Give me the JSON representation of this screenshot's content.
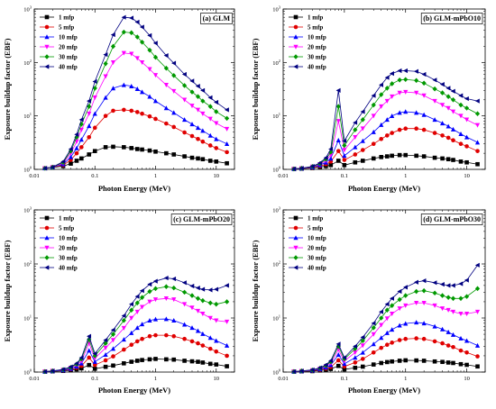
{
  "chart_data": [
    {
      "type": "line",
      "panel_label": "(a) GLM",
      "xlabel": "Photon Energy (MeV)",
      "ylabel": "Exposure buildup factor (EBF)",
      "x_scale": "log",
      "y_scale": "log",
      "xlim": [
        0.01,
        20
      ],
      "ylim": [
        1,
        1000
      ],
      "x_ticks": [
        "0.01",
        "0.1",
        "1",
        "10"
      ],
      "y_ticks": [
        {
          "base": "10",
          "exp": "0"
        },
        {
          "base": "10",
          "exp": "1"
        },
        {
          "base": "10",
          "exp": "2"
        },
        {
          "base": "10",
          "exp": "3"
        }
      ],
      "legend_position": "top-left",
      "x": [
        0.015,
        0.02,
        0.03,
        0.04,
        0.05,
        0.06,
        0.08,
        0.1,
        0.15,
        0.2,
        0.3,
        0.4,
        0.5,
        0.6,
        0.8,
        1,
        1.5,
        2,
        3,
        4,
        5,
        6,
        8,
        10,
        15
      ],
      "series": [
        {
          "name": "1 mfp",
          "marker": "square",
          "color": "#000000",
          "values": [
            1.05,
            1.08,
            1.15,
            1.28,
            1.45,
            1.6,
            1.9,
            2.2,
            2.6,
            2.65,
            2.6,
            2.5,
            2.4,
            2.35,
            2.25,
            2.15,
            2.0,
            1.9,
            1.75,
            1.65,
            1.6,
            1.55,
            1.45,
            1.4,
            1.3
          ]
        },
        {
          "name": "5 mfp",
          "marker": "circle",
          "color": "#e00000",
          "values": [
            1.05,
            1.1,
            1.2,
            1.5,
            2.0,
            2.6,
            4.0,
            6.0,
            10,
            12.5,
            13,
            12.5,
            11.8,
            11,
            9.8,
            8.8,
            7.2,
            6.2,
            4.9,
            4.2,
            3.7,
            3.3,
            2.8,
            2.5,
            2.1
          ]
        },
        {
          "name": "10 mfp",
          "marker": "triangle-up",
          "color": "#0000ff",
          "values": [
            1.05,
            1.1,
            1.25,
            1.7,
            2.5,
            3.6,
            6.5,
            11,
            22,
            33,
            38,
            36,
            32,
            28,
            23,
            19,
            14,
            11.5,
            8.5,
            7,
            6,
            5.3,
            4.3,
            3.7,
            3.0
          ]
        },
        {
          "name": "20 mfp",
          "marker": "triangle-down",
          "color": "#ff00ff",
          "values": [
            1.05,
            1.1,
            1.3,
            2.0,
            3.3,
            5.5,
            11,
            22,
            55,
            100,
            150,
            145,
            120,
            100,
            75,
            58,
            38,
            29,
            20,
            15.5,
            13,
            11,
            8.8,
            7.3,
            5.7
          ]
        },
        {
          "name": "30 mfp",
          "marker": "diamond",
          "color": "#009900",
          "values": [
            1.05,
            1.1,
            1.35,
            2.2,
            4.0,
            7.0,
            15,
            33,
            95,
            200,
            370,
            360,
            300,
            240,
            170,
            125,
            78,
            57,
            37,
            28,
            23,
            19,
            15,
            12,
            9
          ]
        },
        {
          "name": "40 mfp",
          "marker": "triangle-left",
          "color": "#000080",
          "values": [
            1.05,
            1.1,
            1.4,
            2.4,
            4.5,
            8.5,
            19,
            44,
            140,
            330,
            700,
            680,
            570,
            460,
            320,
            230,
            135,
            97,
            60,
            45,
            36,
            30,
            22,
            18,
            13
          ]
        }
      ]
    },
    {
      "type": "line",
      "panel_label": "(b) GLM-mPbO10",
      "xlabel": "Photon Energy (MeV)",
      "ylabel": "Exposure buildup factor (EBF)",
      "x_scale": "log",
      "y_scale": "log",
      "xlim": [
        0.01,
        20
      ],
      "ylim": [
        1,
        1000
      ],
      "x_ticks": [
        "0.01",
        "0.1",
        "1",
        "10"
      ],
      "y_ticks": [
        {
          "base": "10",
          "exp": "0"
        },
        {
          "base": "10",
          "exp": "1"
        },
        {
          "base": "10",
          "exp": "2"
        },
        {
          "base": "10",
          "exp": "3"
        }
      ],
      "legend_position": "top-left",
      "x": [
        0.015,
        0.02,
        0.03,
        0.04,
        0.05,
        0.06,
        0.08,
        0.1,
        0.15,
        0.2,
        0.3,
        0.4,
        0.5,
        0.6,
        0.8,
        1,
        1.5,
        2,
        3,
        4,
        5,
        6,
        8,
        10,
        15
      ],
      "series": [
        {
          "name": "1 mfp",
          "marker": "square",
          "color": "#000000",
          "values": [
            1.02,
            1.03,
            1.06,
            1.1,
            1.15,
            1.2,
            1.45,
            1.2,
            1.35,
            1.45,
            1.6,
            1.7,
            1.75,
            1.8,
            1.85,
            1.85,
            1.8,
            1.75,
            1.65,
            1.6,
            1.55,
            1.5,
            1.4,
            1.35,
            1.25
          ]
        },
        {
          "name": "5 mfp",
          "marker": "circle",
          "color": "#e00000",
          "values": [
            1.02,
            1.04,
            1.08,
            1.15,
            1.25,
            1.4,
            2.2,
            1.5,
            1.9,
            2.3,
            3.0,
            3.7,
            4.3,
            4.8,
            5.5,
            5.8,
            5.8,
            5.5,
            4.8,
            4.3,
            3.9,
            3.5,
            3.0,
            2.7,
            2.2
          ]
        },
        {
          "name": "10 mfp",
          "marker": "triangle-up",
          "color": "#0000ff",
          "values": [
            1.02,
            1.04,
            1.1,
            1.2,
            1.35,
            1.6,
            3.5,
            1.8,
            2.6,
            3.4,
            5.0,
            6.8,
            8.5,
            10,
            11.5,
            12,
            11.5,
            10.5,
            8.5,
            7.3,
            6.4,
            5.6,
            4.6,
            4.0,
            3.2
          ]
        },
        {
          "name": "20 mfp",
          "marker": "triangle-down",
          "color": "#ff00ff",
          "values": [
            1.02,
            1.05,
            1.12,
            1.25,
            1.45,
            1.85,
            8,
            2.3,
            4,
            5.8,
            10,
            15,
            19,
            23,
            27,
            28,
            27,
            24,
            19,
            16,
            14,
            12,
            10,
            8.5,
            6.7
          ]
        },
        {
          "name": "30 mfp",
          "marker": "diamond",
          "color": "#009900",
          "values": [
            1.02,
            1.05,
            1.13,
            1.28,
            1.55,
            2.1,
            15,
            2.8,
            5.5,
            8.5,
            16,
            25,
            33,
            40,
            47,
            48,
            46,
            41,
            32,
            27,
            23,
            20,
            16,
            14,
            11
          ]
        },
        {
          "name": "40 mfp",
          "marker": "triangle-left",
          "color": "#000080",
          "values": [
            1.02,
            1.05,
            1.14,
            1.32,
            1.65,
            2.4,
            30,
            3.4,
            7.5,
            12,
            24,
            38,
            52,
            62,
            70,
            70,
            68,
            60,
            47,
            39,
            33,
            29,
            24,
            21,
            19
          ]
        }
      ]
    },
    {
      "type": "line",
      "panel_label": "(c) GLM-mPbO20",
      "xlabel": "Photon Energy (MeV)",
      "ylabel": "Exposure buildup factor (EBF)",
      "x_scale": "log",
      "y_scale": "log",
      "xlim": [
        0.01,
        20
      ],
      "ylim": [
        1,
        1000
      ],
      "x_ticks": [
        "0.01",
        "0.1",
        "1",
        "10"
      ],
      "y_ticks": [
        {
          "base": "10",
          "exp": "0"
        },
        {
          "base": "10",
          "exp": "1"
        },
        {
          "base": "10",
          "exp": "2"
        },
        {
          "base": "10",
          "exp": "3"
        }
      ],
      "legend_position": "top-left",
      "x": [
        0.015,
        0.02,
        0.03,
        0.04,
        0.05,
        0.06,
        0.08,
        0.1,
        0.15,
        0.2,
        0.3,
        0.4,
        0.5,
        0.6,
        0.8,
        1,
        1.5,
        2,
        3,
        4,
        5,
        6,
        8,
        10,
        15
      ],
      "series": [
        {
          "name": "1 mfp",
          "marker": "square",
          "color": "#000000",
          "values": [
            1.02,
            1.03,
            1.05,
            1.08,
            1.12,
            1.17,
            1.35,
            1.15,
            1.25,
            1.32,
            1.45,
            1.55,
            1.62,
            1.67,
            1.72,
            1.75,
            1.72,
            1.7,
            1.62,
            1.58,
            1.55,
            1.5,
            1.42,
            1.38,
            1.28
          ]
        },
        {
          "name": "5 mfp",
          "marker": "circle",
          "color": "#e00000",
          "values": [
            1.02,
            1.04,
            1.07,
            1.12,
            1.2,
            1.3,
            1.85,
            1.35,
            1.65,
            1.95,
            2.6,
            3.2,
            3.7,
            4.1,
            4.6,
            4.8,
            4.8,
            4.6,
            4.1,
            3.7,
            3.4,
            3.1,
            2.7,
            2.4,
            2.0
          ]
        },
        {
          "name": "10 mfp",
          "marker": "triangle-up",
          "color": "#0000ff",
          "values": [
            1.02,
            1.04,
            1.08,
            1.15,
            1.27,
            1.45,
            2.5,
            1.55,
            2.1,
            2.7,
            4.0,
            5.3,
            6.6,
            7.7,
            9.0,
            9.5,
            9.6,
            9.0,
            7.6,
            6.6,
            5.8,
            5.1,
            4.3,
            3.8,
            3.1
          ]
        },
        {
          "name": "20 mfp",
          "marker": "triangle-down",
          "color": "#ff00ff",
          "values": [
            1.02,
            1.05,
            1.1,
            1.2,
            1.35,
            1.6,
            3.4,
            1.8,
            2.8,
            3.9,
            6.5,
            10,
            13,
            16,
            20,
            22,
            23,
            22,
            18,
            15.5,
            13.5,
            12,
            10,
            9,
            8.5
          ]
        },
        {
          "name": "30 mfp",
          "marker": "diamond",
          "color": "#009900",
          "values": [
            1.02,
            1.05,
            1.11,
            1.22,
            1.4,
            1.75,
            4.0,
            2.0,
            3.4,
            5.0,
            9.0,
            14,
            19,
            24,
            31,
            35,
            38,
            36,
            30,
            26,
            23,
            21,
            19,
            18,
            20
          ]
        },
        {
          "name": "40 mfp",
          "marker": "triangle-left",
          "color": "#000080",
          "values": [
            1.02,
            1.05,
            1.12,
            1.25,
            1.45,
            1.85,
            4.6,
            2.2,
            3.9,
            6.0,
            11,
            18,
            25,
            32,
            42,
            48,
            55,
            53,
            45,
            39,
            36,
            34,
            33,
            34,
            40
          ]
        }
      ]
    },
    {
      "type": "line",
      "panel_label": "(d) GLM-mPbO30",
      "xlabel": "Photon Energy (MeV)",
      "ylabel": "Exposure buildup factor (EBF)",
      "x_scale": "log",
      "y_scale": "log",
      "xlim": [
        0.01,
        20
      ],
      "ylim": [
        1,
        1000
      ],
      "x_ticks": [
        "0.01",
        "0.1",
        "1",
        "10"
      ],
      "y_ticks": [
        {
          "base": "10",
          "exp": "0"
        },
        {
          "base": "10",
          "exp": "1"
        },
        {
          "base": "10",
          "exp": "2"
        },
        {
          "base": "10",
          "exp": "3"
        }
      ],
      "legend_position": "top-left",
      "x": [
        0.015,
        0.02,
        0.03,
        0.04,
        0.05,
        0.06,
        0.08,
        0.1,
        0.15,
        0.2,
        0.3,
        0.4,
        0.5,
        0.6,
        0.8,
        1,
        1.5,
        2,
        3,
        4,
        5,
        6,
        8,
        10,
        15
      ],
      "series": [
        {
          "name": "1 mfp",
          "marker": "square",
          "color": "#000000",
          "values": [
            1.02,
            1.03,
            1.04,
            1.07,
            1.1,
            1.14,
            1.3,
            1.12,
            1.2,
            1.26,
            1.38,
            1.47,
            1.53,
            1.57,
            1.62,
            1.65,
            1.64,
            1.62,
            1.57,
            1.54,
            1.5,
            1.47,
            1.4,
            1.36,
            1.27
          ]
        },
        {
          "name": "5 mfp",
          "marker": "circle",
          "color": "#e00000",
          "values": [
            1.02,
            1.04,
            1.06,
            1.1,
            1.16,
            1.24,
            1.65,
            1.27,
            1.5,
            1.75,
            2.3,
            2.8,
            3.2,
            3.5,
            3.9,
            4.1,
            4.2,
            4.1,
            3.7,
            3.4,
            3.1,
            2.9,
            2.5,
            2.3,
            1.95
          ]
        },
        {
          "name": "10 mfp",
          "marker": "triangle-up",
          "color": "#0000ff",
          "values": [
            1.02,
            1.04,
            1.07,
            1.13,
            1.22,
            1.35,
            2.1,
            1.42,
            1.85,
            2.3,
            3.3,
            4.3,
            5.3,
            6.1,
            7.3,
            7.9,
            8.3,
            8.0,
            7.0,
            6.2,
            5.5,
            4.9,
            4.2,
            3.8,
            3.1
          ]
        },
        {
          "name": "20 mfp",
          "marker": "triangle-down",
          "color": "#ff00ff",
          "values": [
            1.02,
            1.04,
            1.08,
            1.16,
            1.28,
            1.45,
            2.6,
            1.6,
            2.3,
            3.1,
            5.0,
            7.4,
            9.8,
            12,
            15,
            17,
            19,
            19,
            17,
            15,
            14,
            13,
            12,
            12,
            13
          ]
        },
        {
          "name": "30 mfp",
          "marker": "diamond",
          "color": "#009900",
          "values": [
            1.02,
            1.05,
            1.09,
            1.18,
            1.32,
            1.55,
            3.0,
            1.75,
            2.7,
            3.8,
            6.6,
            10,
            14,
            17,
            22,
            26,
            31,
            32,
            29,
            26,
            24,
            23,
            23,
            25,
            35
          ]
        },
        {
          "name": "40 mfp",
          "marker": "triangle-left",
          "color": "#000080",
          "values": [
            1.02,
            1.05,
            1.1,
            1.2,
            1.36,
            1.62,
            3.3,
            1.85,
            3.0,
            4.4,
            8.0,
            13,
            18,
            23,
            31,
            37,
            46,
            49,
            45,
            42,
            40,
            40,
            43,
            50,
            95
          ]
        }
      ]
    }
  ]
}
